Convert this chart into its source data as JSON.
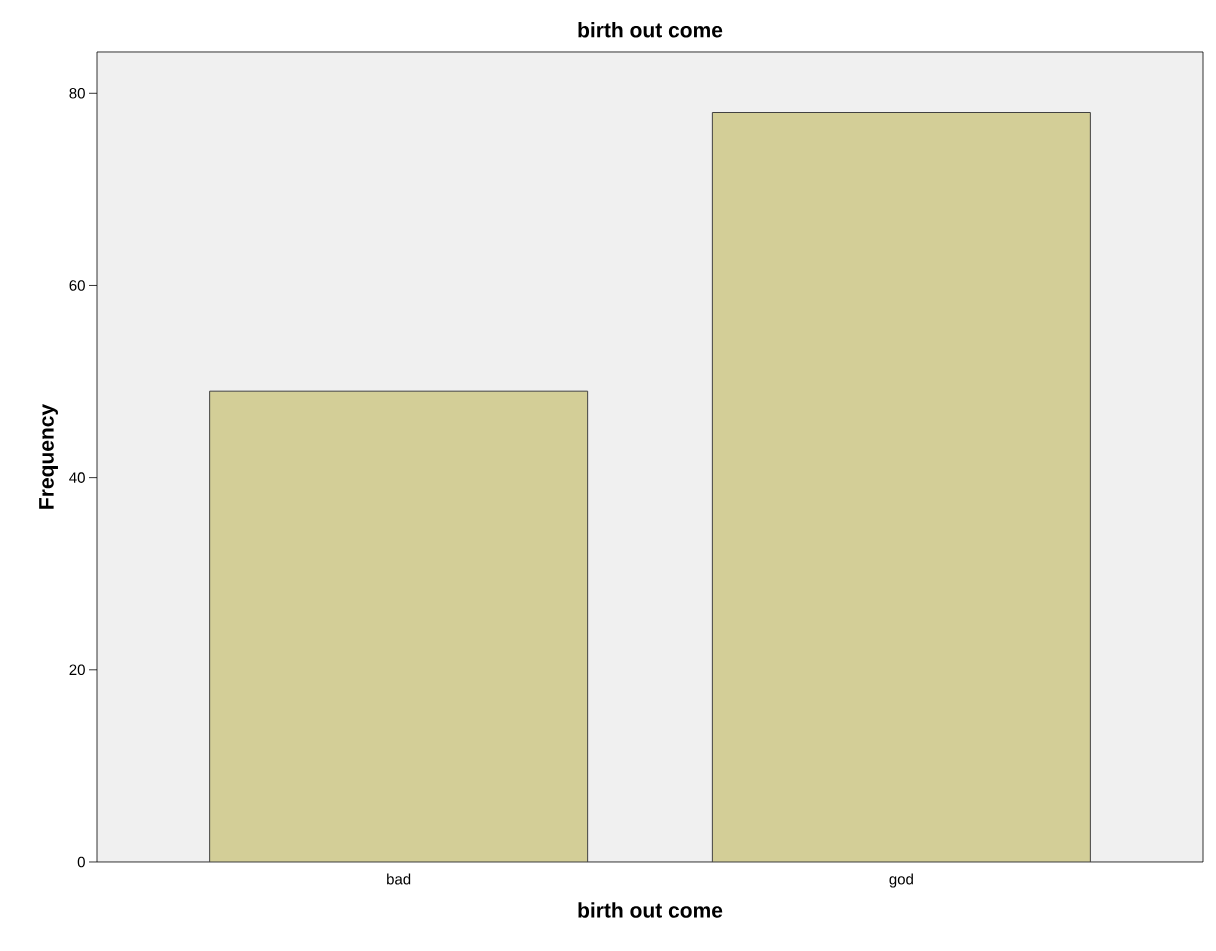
{
  "chart_data": {
    "type": "bar",
    "title": "birth out come",
    "xlabel": "birth out come",
    "ylabel": "Frequency",
    "categories": [
      "bad",
      "god"
    ],
    "values": [
      49,
      78
    ],
    "color": "#d3ce97",
    "ylim": [
      0,
      84.3
    ],
    "yticks": [
      0,
      20,
      40,
      60,
      80
    ],
    "grid": false
  }
}
